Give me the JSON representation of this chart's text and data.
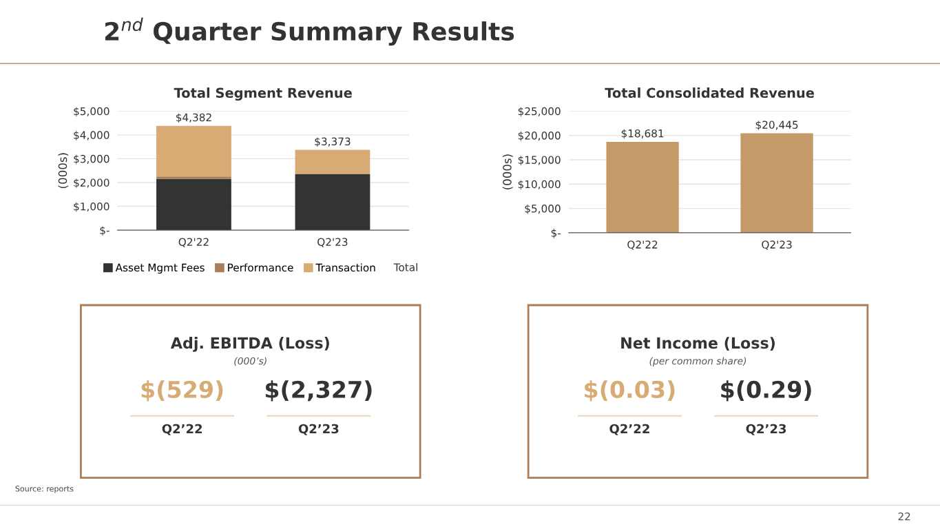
{
  "chart_data": [
    {
      "type": "other",
      "title": "2$^{nd}$ Quarter Summary Results",
      "annotations": [
        "Source: reports",
        "22"
      ]
    },
    {
      "type": "bar",
      "title": "Total Segment Revenue",
      "ylabel": "(000s)",
      "categories": [
        "Q2'22",
        "Q2'23"
      ],
      "stacked": true,
      "ylim": [
        0,
        5000
      ],
      "yticks": [
        {
          "value": 0,
          "label": "$-"
        },
        {
          "value": 1000,
          "label": "$1,000"
        },
        {
          "value": 2000,
          "label": "$2,000"
        },
        {
          "value": 3000,
          "label": "$3,000"
        },
        {
          "value": 4000,
          "label": "$4,000"
        },
        {
          "value": 5000,
          "label": "$5,000"
        }
      ],
      "grid": "y",
      "legend": "bottom",
      "totals": [
        "$4,382",
        "$3,373"
      ],
      "series": [
        {
          "name": "Asset Mgmt Fees",
          "color": "#333333",
          "values": [
            2150,
            2360
          ]
        },
        {
          "name": "Performance",
          "color": "#a97e58",
          "values": [
            100,
            0
          ]
        },
        {
          "name": "Transaction",
          "color": "#d8ab74",
          "values": [
            2132,
            1013
          ]
        }
      ],
      "annotations": [
        "Total"
      ]
    },
    {
      "type": "bar",
      "title": "Total Consolidated Revenue",
      "ylabel": "(000s)",
      "categories": [
        "Q2'22",
        "Q2'23"
      ],
      "ylim": [
        0,
        25000
      ],
      "yticks": [
        {
          "value": 0,
          "label": "$-"
        },
        {
          "value": 5000,
          "label": "$5,000"
        },
        {
          "value": 10000,
          "label": "$10,000"
        },
        {
          "value": 15000,
          "label": "$15,000"
        },
        {
          "value": 20000,
          "label": "$20,000"
        },
        {
          "value": 25000,
          "label": "$25,000"
        }
      ],
      "grid": "y",
      "values": [
        18681,
        20445
      ],
      "color": "#c49a68",
      "value_labels": [
        "$18,681",
        "$20,445"
      ]
    },
    {
      "type": "other",
      "title": "Adj. EBITDA (Loss)",
      "subtitle": "(000’s)",
      "annotations": [
        "$(529)",
        "$(2,327)",
        "Q2’22",
        "Q2’23"
      ]
    },
    {
      "type": "other",
      "title": "Net Income (Loss)",
      "subtitle": "(per common share)",
      "annotations": [
        "$(0.03)",
        "$(0.29)",
        "Q2’22",
        "Q2’23"
      ]
    }
  ]
}
